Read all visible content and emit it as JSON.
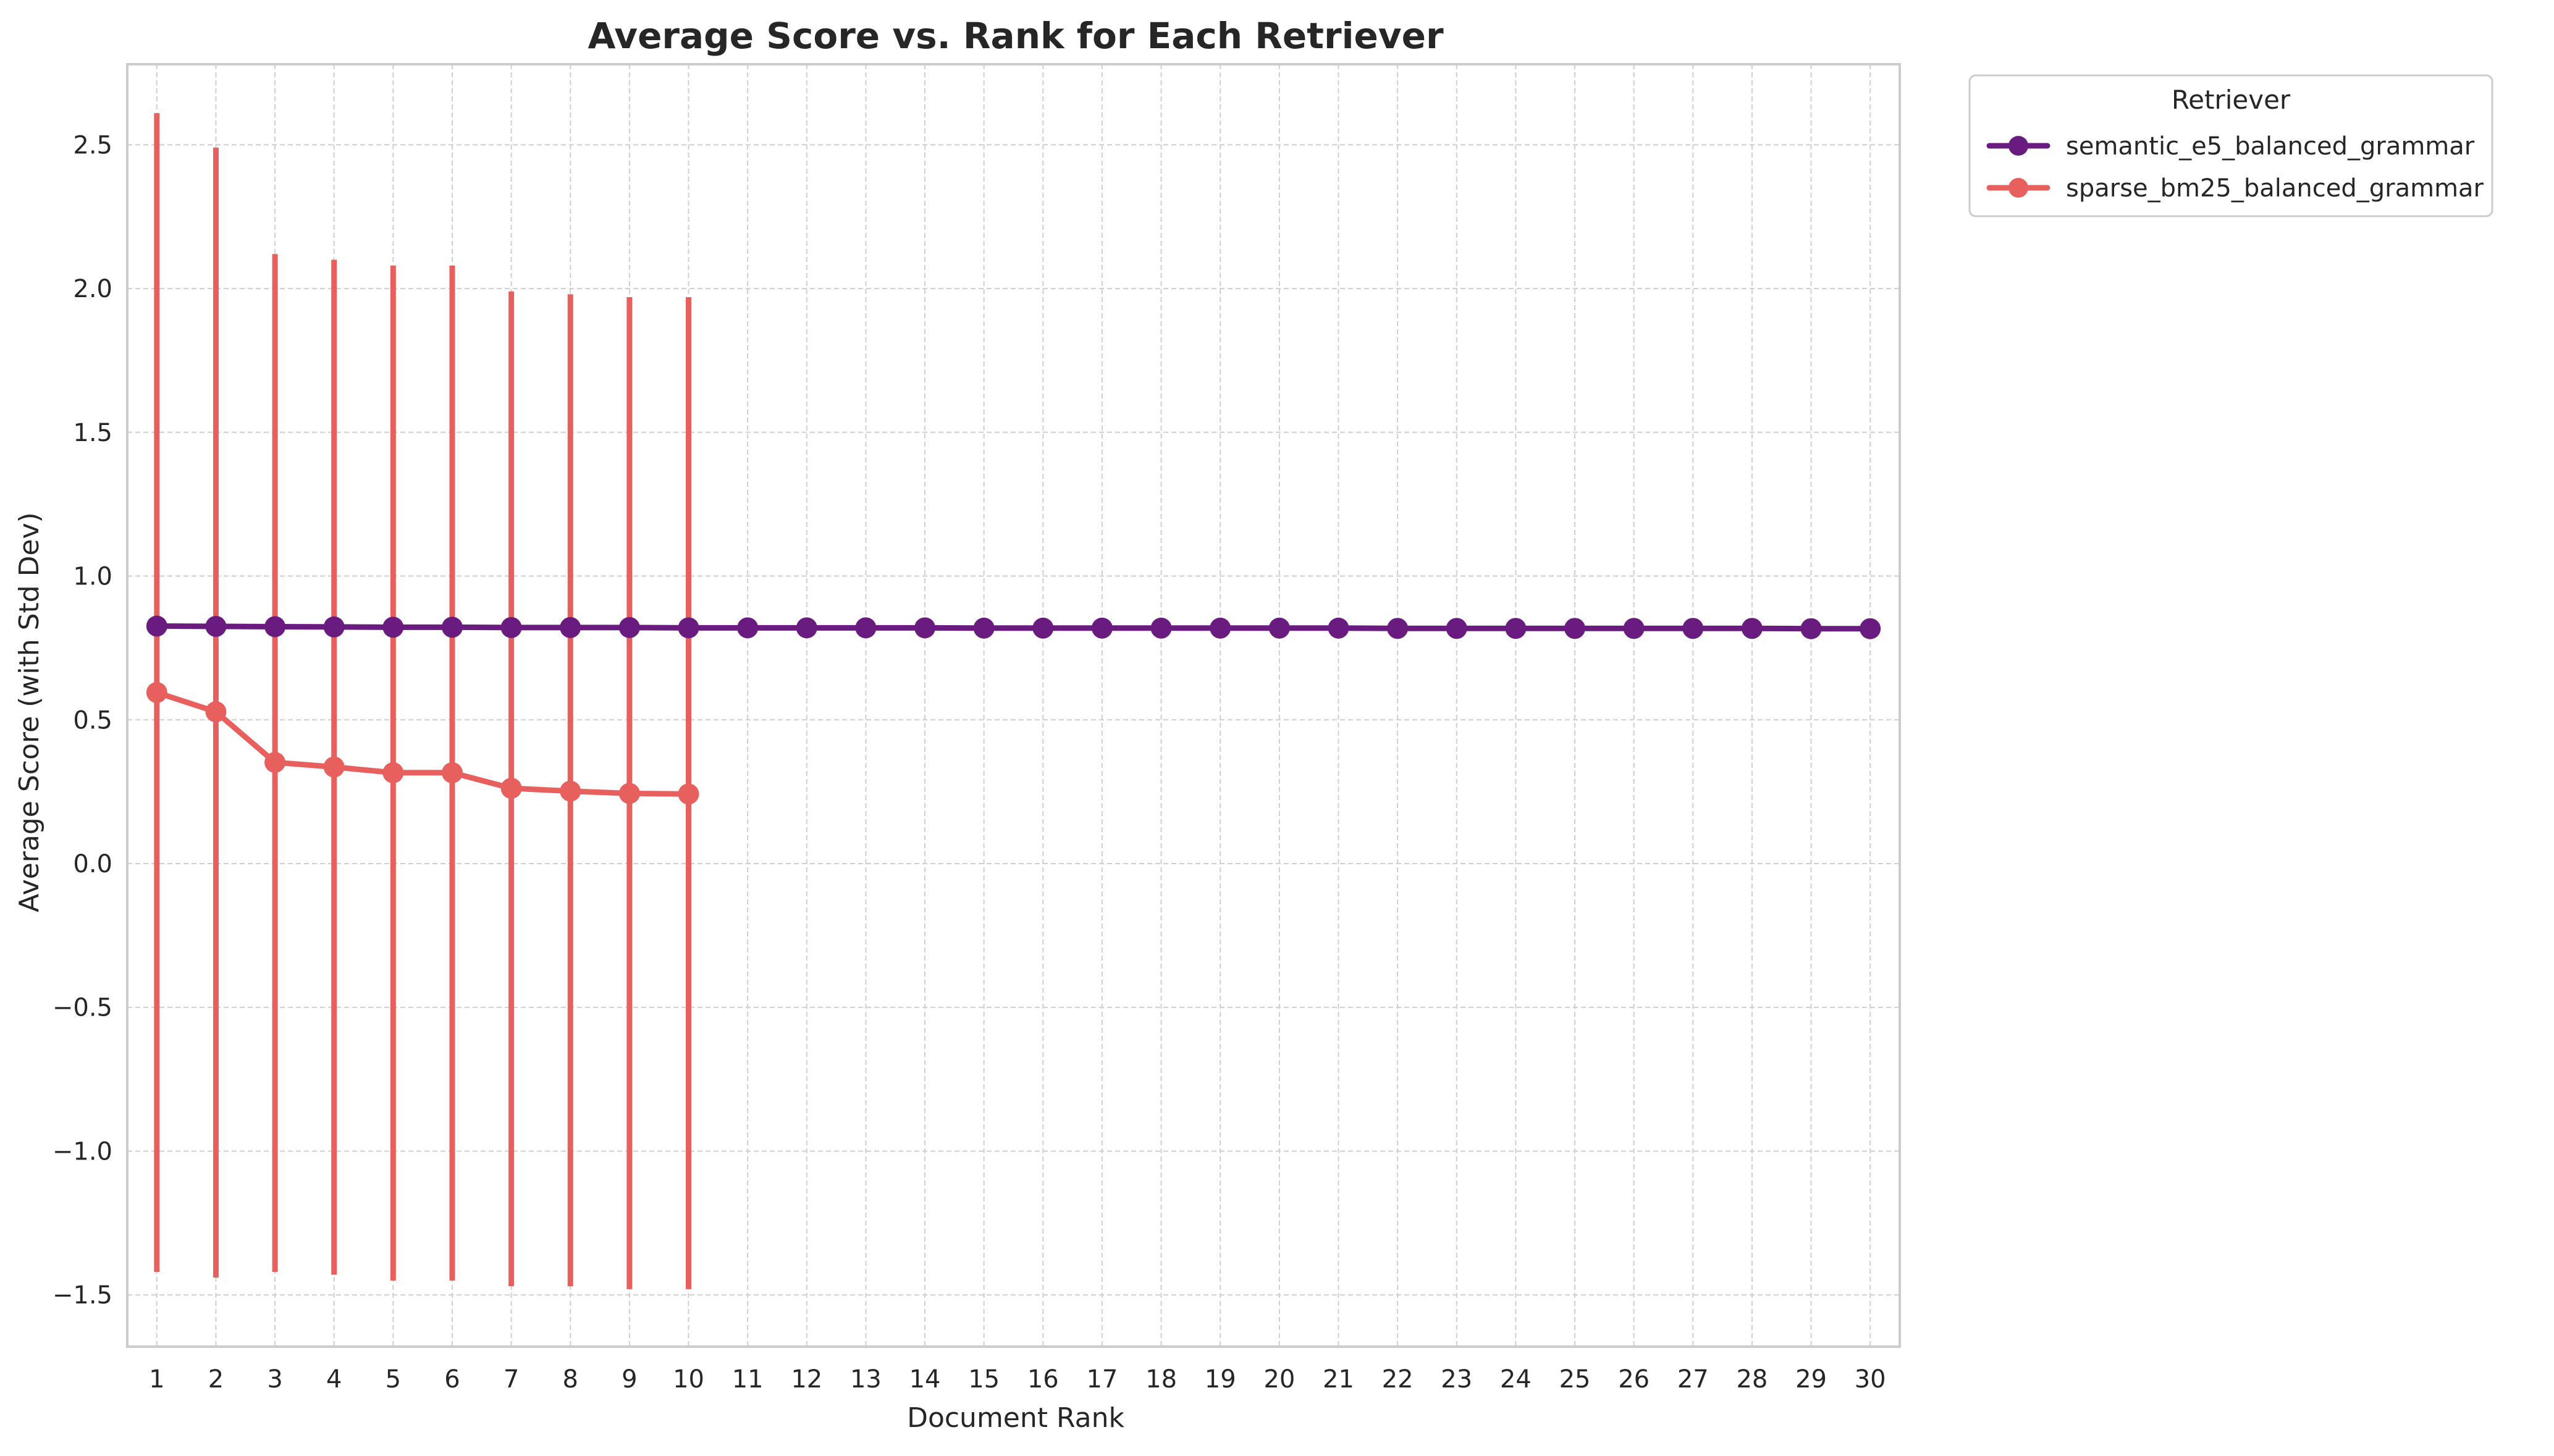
{
  "chart_data": {
    "type": "line",
    "title": "Average Score vs. Rank for Each Retriever",
    "xlabel": "Document Rank",
    "ylabel": "Average Score (with Std Dev)",
    "x": [
      1,
      2,
      3,
      4,
      5,
      6,
      7,
      8,
      9,
      10,
      11,
      12,
      13,
      14,
      15,
      16,
      17,
      18,
      19,
      20,
      21,
      22,
      23,
      24,
      25,
      26,
      27,
      28,
      29,
      30
    ],
    "xlim": [
      0.5,
      30.5
    ],
    "ylim": [
      -1.68,
      2.78
    ],
    "yticks": [
      2.5,
      2.0,
      1.5,
      1.0,
      0.5,
      0.0,
      -0.5,
      -1.0,
      -1.5
    ],
    "ytick_labels": [
      "2.5",
      "2.0",
      "1.5",
      "1.0",
      "0.5",
      "0.0",
      "−0.5",
      "−1.0",
      "−1.5"
    ],
    "grid": true,
    "legend_title": "Retriever",
    "legend_position": "outside upper right",
    "series": [
      {
        "name": "semantic_e5_balanced_grammar",
        "color": "#6a1b7f",
        "x": [
          1,
          2,
          3,
          4,
          5,
          6,
          7,
          8,
          9,
          10,
          11,
          12,
          13,
          14,
          15,
          16,
          17,
          18,
          19,
          20,
          21,
          22,
          23,
          24,
          25,
          26,
          27,
          28,
          29,
          30
        ],
        "values": [
          0.826,
          0.825,
          0.824,
          0.823,
          0.822,
          0.822,
          0.821,
          0.821,
          0.821,
          0.82,
          0.82,
          0.82,
          0.82,
          0.82,
          0.819,
          0.819,
          0.819,
          0.819,
          0.819,
          0.819,
          0.819,
          0.818,
          0.818,
          0.818,
          0.818,
          0.818,
          0.818,
          0.818,
          0.817,
          0.817
        ],
        "err_low": [
          0.82,
          0.82,
          0.82,
          0.82,
          0.82,
          0.82,
          0.82,
          0.82,
          0.82,
          0.82,
          0.815,
          0.815,
          0.815,
          0.815,
          0.815,
          0.815,
          0.815,
          0.815,
          0.815,
          0.815,
          0.815,
          0.815,
          0.815,
          0.815,
          0.815,
          0.815,
          0.815,
          0.815,
          0.815,
          0.815
        ],
        "err_high": [
          0.83,
          0.83,
          0.83,
          0.83,
          0.83,
          0.83,
          0.83,
          0.83,
          0.83,
          0.83,
          0.825,
          0.825,
          0.825,
          0.825,
          0.825,
          0.825,
          0.825,
          0.825,
          0.825,
          0.825,
          0.825,
          0.825,
          0.825,
          0.825,
          0.825,
          0.825,
          0.825,
          0.825,
          0.825,
          0.825
        ]
      },
      {
        "name": "sparse_bm25_balanced_grammar",
        "color": "#e8605e",
        "x": [
          1,
          2,
          3,
          4,
          5,
          6,
          7,
          8,
          9,
          10
        ],
        "values": [
          0.595,
          0.528,
          0.352,
          0.336,
          0.316,
          0.316,
          0.262,
          0.252,
          0.244,
          0.242
        ],
        "err_low": [
          -1.42,
          -1.44,
          -1.42,
          -1.43,
          -1.45,
          -1.45,
          -1.47,
          -1.47,
          -1.48,
          -1.48
        ],
        "err_high": [
          2.61,
          2.49,
          2.12,
          2.1,
          2.08,
          2.08,
          1.99,
          1.98,
          1.97,
          1.97
        ]
      }
    ]
  }
}
